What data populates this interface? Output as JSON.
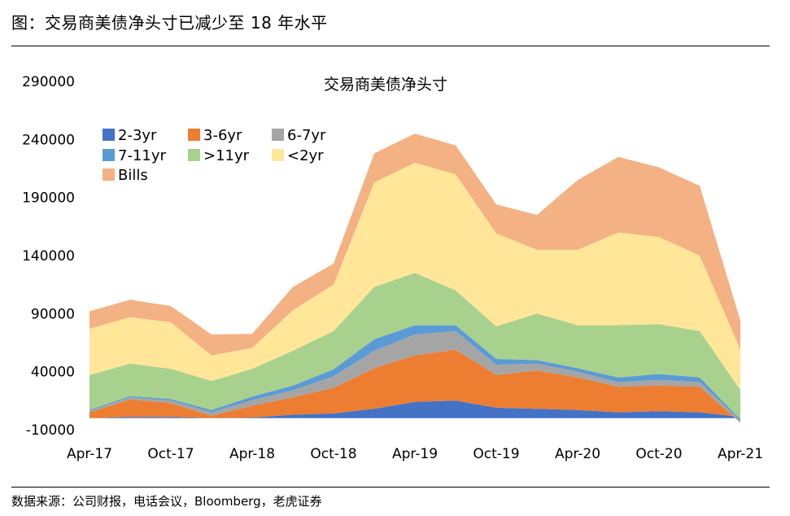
{
  "figure_title": "图：交易商美债净头寸已减少至 18 年水平",
  "source_note": "数据来源：公司财报，电话会议，Bloomberg，老虎证券",
  "chart_data": {
    "type": "area",
    "stacked": true,
    "title": "交易商美债净头寸",
    "xlabel": "",
    "ylabel": "",
    "ylim": [
      -10000,
      290000
    ],
    "yticks": [
      -10000,
      40000,
      90000,
      140000,
      190000,
      240000,
      290000
    ],
    "ytick_labels": [
      "-10000",
      "40000",
      "90000",
      "140000",
      "190000",
      "240000",
      "290000"
    ],
    "xtick_labels": [
      "Apr-17",
      "Oct-17",
      "Apr-18",
      "Oct-18",
      "Apr-19",
      "Oct-19",
      "Apr-20",
      "Oct-20",
      "Apr-21"
    ],
    "x": [
      "Apr-17",
      "Jul-17",
      "Oct-17",
      "Jan-18",
      "Apr-18",
      "Jul-18",
      "Oct-18",
      "Jan-19",
      "Apr-19",
      "Jul-19",
      "Oct-19",
      "Jan-20",
      "Apr-20",
      "Jul-20",
      "Oct-20",
      "Jan-21",
      "Apr-21"
    ],
    "legend_position": "top-left",
    "grid": false,
    "series": [
      {
        "name": "2-3yr",
        "color": "#4472C4",
        "values": [
          0,
          1000,
          1000,
          0,
          500,
          3000,
          4000,
          8000,
          14000,
          15000,
          9000,
          8000,
          7000,
          5000,
          6000,
          5000,
          1000
        ]
      },
      {
        "name": "3-6yr",
        "color": "#ED7D31",
        "values": [
          5000,
          15000,
          12000,
          2000,
          10000,
          15000,
          22000,
          35000,
          40000,
          44000,
          28000,
          33000,
          28000,
          22000,
          22000,
          22000,
          -5000
        ]
      },
      {
        "name": "6-7yr",
        "color": "#A5A5A5",
        "values": [
          1000,
          2000,
          2000,
          3000,
          5000,
          6000,
          10000,
          15000,
          18000,
          16000,
          9000,
          6000,
          5000,
          4000,
          5000,
          4000,
          2000
        ]
      },
      {
        "name": "7-11yr",
        "color": "#5B9BD5",
        "values": [
          1000,
          1000,
          1500,
          2000,
          3000,
          4000,
          6000,
          10000,
          8000,
          5000,
          5000,
          3000,
          3000,
          4000,
          5000,
          4000,
          1000
        ]
      },
      {
        "name": ">11yr",
        "color": "#A9D18E",
        "values": [
          30000,
          28000,
          26000,
          25000,
          24000,
          30000,
          33000,
          45000,
          45000,
          30000,
          28000,
          40000,
          37000,
          45000,
          43000,
          40000,
          25000
        ]
      },
      {
        "name": "<2yr",
        "color": "#FFE699",
        "values": [
          40000,
          40000,
          40000,
          22000,
          18000,
          35000,
          40000,
          90000,
          95000,
          100000,
          80000,
          55000,
          65000,
          80000,
          75000,
          65000,
          35000
        ]
      },
      {
        "name": "Bills",
        "color": "#F4B183",
        "values": [
          15000,
          15000,
          14000,
          18000,
          12000,
          20000,
          18000,
          25000,
          25000,
          25000,
          25000,
          30000,
          60000,
          65000,
          60000,
          60000,
          25000
        ]
      }
    ]
  }
}
